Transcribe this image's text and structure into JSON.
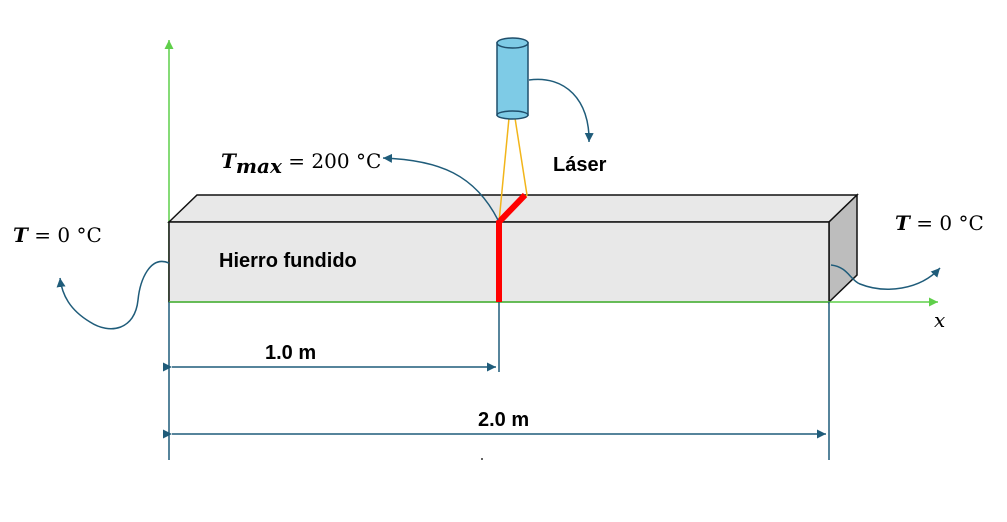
{
  "labels": {
    "laser": "Láser",
    "material": "Hierro fundido",
    "x_axis": "x",
    "dim_half": "1.0 m",
    "dim_full": "2.0 m",
    "left_bc_symbol": "T",
    "left_bc_value": " = 0 °C",
    "right_bc_symbol": "T",
    "right_bc_value": " = 0 °C",
    "tmax_symbol": "T",
    "tmax_subscript": "max",
    "tmax_value": " = 200 °C"
  },
  "colors": {
    "axis": "#5fcf4a",
    "beam_face": "#e8e8e8",
    "beam_end": "#bdbdbd",
    "laser_body": "#7ecbe6",
    "laser_beam": "#f2b51a",
    "hot_line": "#ff0000",
    "arrow": "#1f5c7a"
  },
  "icons": {
    "laser": "laser-cylinder-icon",
    "heat_arrow": "curved-arrow-icon"
  }
}
